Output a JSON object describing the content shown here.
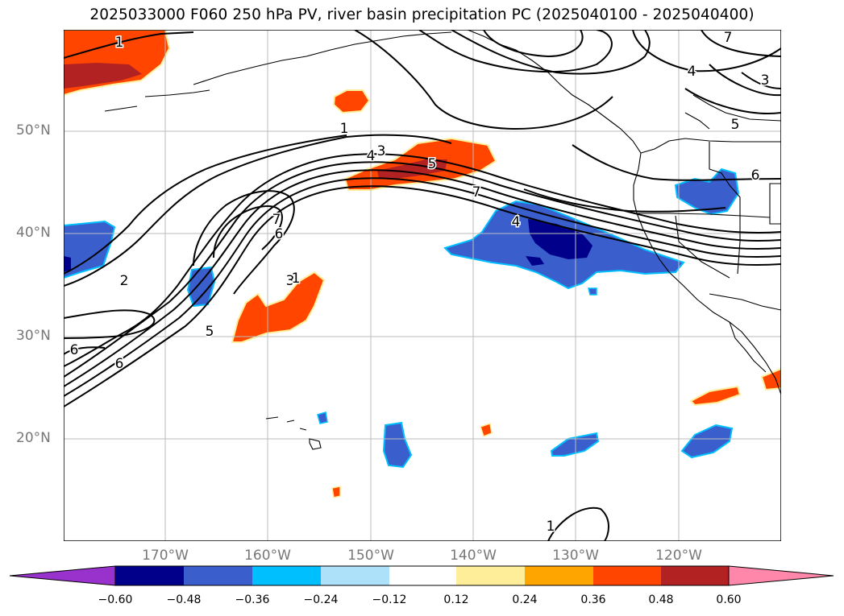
{
  "title": "2025033000 F060 250 hPa PV, river basin precipitation PC (2025040100 - 2025040400)",
  "axes": {
    "lat_labels": [
      "50°N",
      "40°N",
      "30°N",
      "20°N"
    ],
    "lon_labels": [
      "170°W",
      "160°W",
      "150°W",
      "140°W",
      "130°W",
      "120°W"
    ]
  },
  "colorbar": {
    "ticks": [
      "−0.60",
      "−0.48",
      "−0.36",
      "−0.24",
      "−0.12",
      "0.12",
      "0.24",
      "0.36",
      "0.48",
      "0.60"
    ],
    "colors": [
      "#9932CC",
      "#00008B",
      "#3A5FCD",
      "#00BFFF",
      "#ADE1FA",
      "#FFFFFF",
      "#FFEE99",
      "#FFA500",
      "#FF4500",
      "#B22222",
      "#FF88AA"
    ]
  },
  "contour_labels": [
    "1",
    "7",
    "6",
    "4",
    "3",
    "5",
    "1",
    "4",
    "3",
    "5",
    "6",
    "7",
    "6",
    "4",
    "2",
    "3",
    "5",
    "6",
    "1",
    "1",
    "7"
  ]
}
